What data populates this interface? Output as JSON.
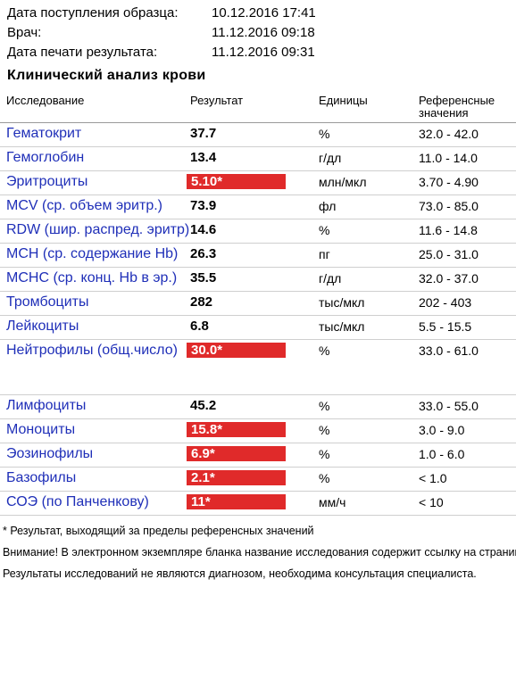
{
  "header": {
    "info": [
      {
        "label": "Дата поступления образца:",
        "value": "10.12.2016 17:41"
      },
      {
        "label": "Врач:",
        "value": "11.12.2016 09:18"
      },
      {
        "label": "Дата печати результата:",
        "value": "11.12.2016 09:31"
      }
    ],
    "title": "Клинический анализ крови"
  },
  "table": {
    "columns": [
      "Исследование",
      "Результат",
      "Единицы",
      "Референсные значения"
    ],
    "rows": [
      {
        "name": "Гематокрит",
        "result": "37.7",
        "flag": false,
        "units": "%",
        "reference": "32.0 - 42.0"
      },
      {
        "name": "Гемоглобин",
        "result": "13.4",
        "flag": false,
        "units": "г/дл",
        "reference": "11.0 - 14.0"
      },
      {
        "name": "Эритроциты",
        "result": "5.10*",
        "flag": true,
        "units": "млн/мкл",
        "reference": "3.70 - 4.90"
      },
      {
        "name": "MCV (ср. объем эритр.)",
        "result": "73.9",
        "flag": false,
        "units": "фл",
        "reference": "73.0 - 85.0"
      },
      {
        "name": "RDW (шир. распред. эритр)",
        "result": "14.6",
        "flag": false,
        "units": "%",
        "reference": "11.6 - 14.8"
      },
      {
        "name": "MCH (ср. содержание Hb)",
        "result": "26.3",
        "flag": false,
        "units": "пг",
        "reference": "25.0 - 31.0"
      },
      {
        "name": "MCHC (ср. конц. Hb в эр.)",
        "result": "35.5",
        "flag": false,
        "units": "г/дл",
        "reference": "32.0 - 37.0"
      },
      {
        "name": "Тромбоциты",
        "result": "282",
        "flag": false,
        "units": "тыс/мкл",
        "reference": "202 - 403"
      },
      {
        "name": "Лейкоциты",
        "result": "6.8",
        "flag": false,
        "units": "тыс/мкл",
        "reference": "5.5 - 15.5"
      },
      {
        "name": "Нейтрофилы (общ.число)",
        "result": "30.0*",
        "flag": true,
        "units": "%",
        "reference": "33.0 - 61.0"
      },
      {
        "name": "Лимфоциты",
        "result": "45.2",
        "flag": false,
        "units": "%",
        "reference": "33.0 - 55.0"
      },
      {
        "name": "Моноциты",
        "result": "15.8*",
        "flag": true,
        "units": "%",
        "reference": "3.0 - 9.0"
      },
      {
        "name": "Эозинофилы",
        "result": "6.9*",
        "flag": true,
        "units": "%",
        "reference": "1.0 - 6.0"
      },
      {
        "name": "Базофилы",
        "result": "2.1*",
        "flag": true,
        "units": "%",
        "reference": "< 1.0"
      },
      {
        "name": "СОЭ (по Панченкову)",
        "result": "11*",
        "flag": true,
        "units": "мм/ч",
        "reference": "< 10"
      }
    ]
  },
  "notes": [
    "* Результат, выходящий за пределы референсных значений",
    "Внимание! В электронном экземпляре бланка название исследования содержит ссылку на страницу с описанием исследования.",
    "Результаты исследований не являются диагнозом, необходима консультация специалиста."
  ]
}
